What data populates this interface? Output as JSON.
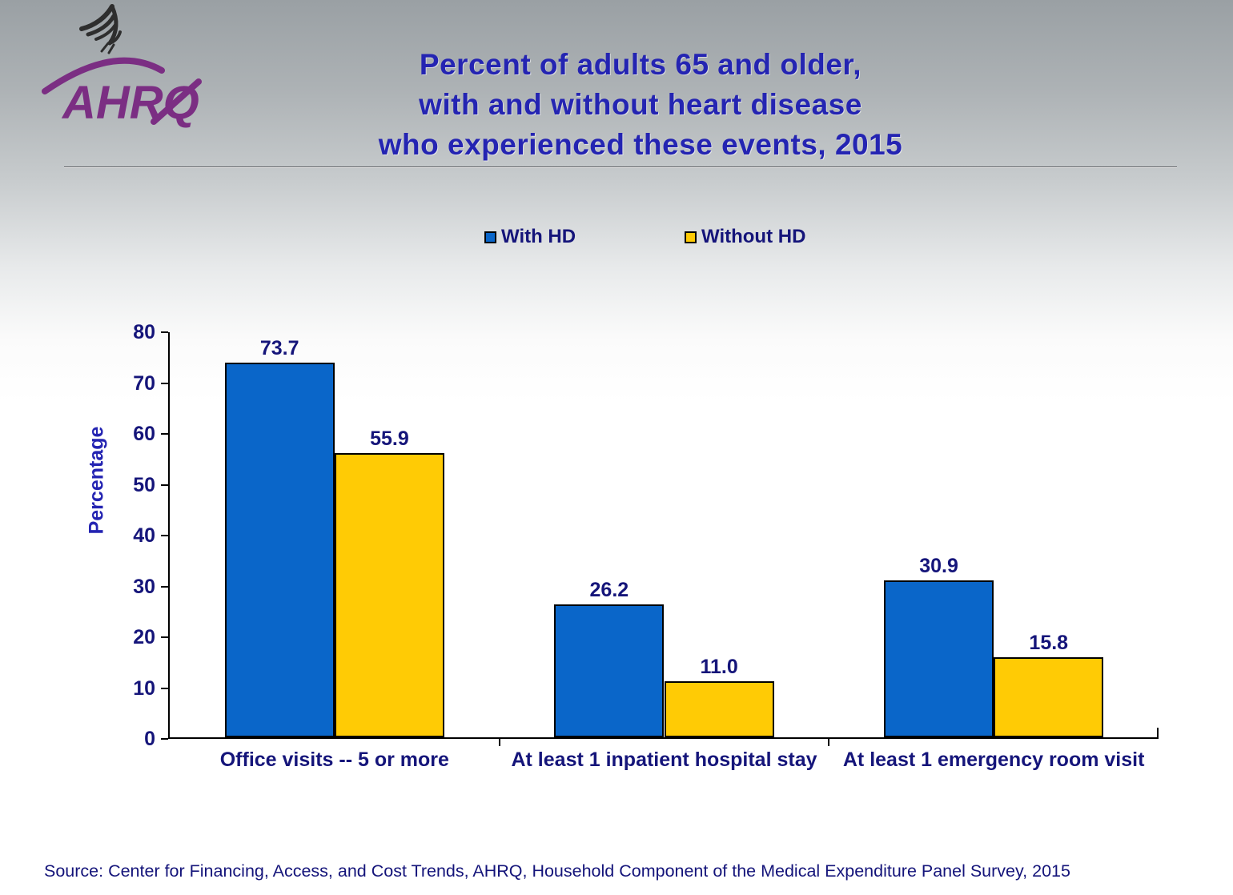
{
  "header": {
    "logo": {
      "ahrq_label": "AHRQ",
      "eagle_icon": "hhs-eagle",
      "brand_color": "#7b2e83"
    },
    "title_lines": [
      "Percent of adults 65 and older,",
      "with and without heart disease",
      "who experienced these events, 2015"
    ]
  },
  "legend": [
    {
      "label": "With HD",
      "color": "#0a66c9"
    },
    {
      "label": "Without HD",
      "color": "#ffcb05"
    }
  ],
  "chart_data": {
    "type": "bar",
    "title": "Percent of adults 65 and older, with and without heart disease who experienced these events, 2015",
    "categories": [
      "Office visits -- 5 or more",
      "At least 1 inpatient hospital stay",
      "At least 1 emergency room visit"
    ],
    "series": [
      {
        "name": "With HD",
        "color": "#0a66c9",
        "values": [
          73.7,
          26.2,
          30.9
        ]
      },
      {
        "name": "Without HD",
        "color": "#ffcb05",
        "values": [
          55.9,
          11.0,
          15.8
        ]
      }
    ],
    "xlabel": "",
    "ylabel": "Percentage",
    "ylim": [
      0,
      80
    ],
    "yticks": [
      0,
      10,
      20,
      30,
      40,
      50,
      60,
      70,
      80
    ],
    "grid": false,
    "legend_position": "top",
    "value_labels": true,
    "bar_border_color": "#000000",
    "label_color": "#15157a"
  },
  "footer": {
    "source": "Source: Center for Financing, Access, and Cost Trends, AHRQ, Household Component of the Medical Expenditure Panel Survey, 2015"
  }
}
